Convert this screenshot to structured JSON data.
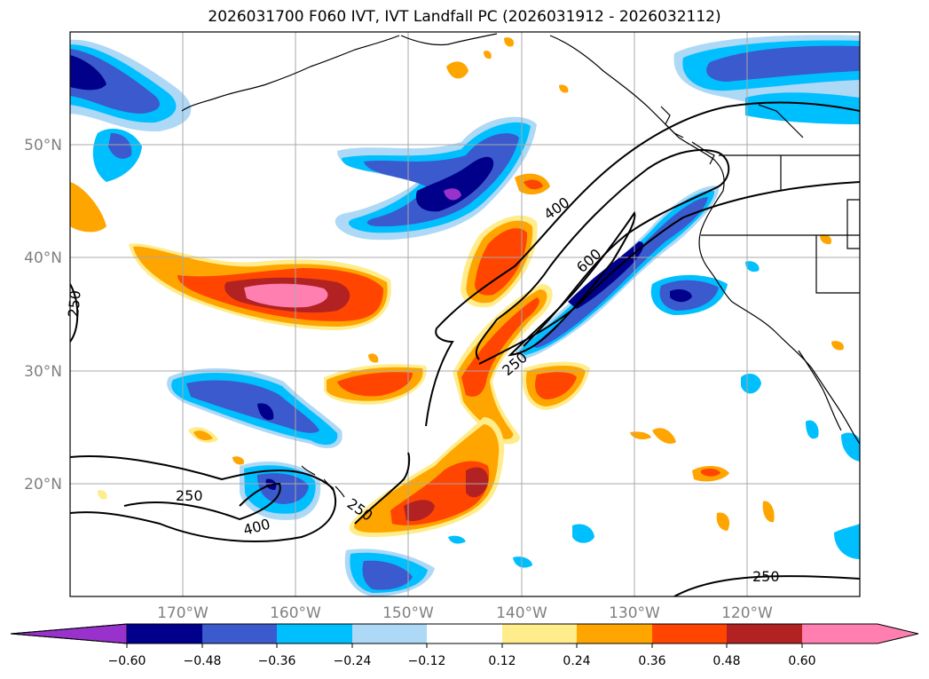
{
  "title": "2026031700 F060 IVT, IVT Landfall PC (2026031912 - 2026032112)",
  "map": {
    "lon_range": [
      -180,
      -110
    ],
    "lat_range": [
      10,
      60
    ],
    "lat_labels": [
      "50°N",
      "40°N",
      "30°N",
      "20°N"
    ],
    "lon_labels": [
      "170°W",
      "160°W",
      "150°W",
      "140°W",
      "130°W",
      "120°W"
    ]
  },
  "contours": {
    "labels": [
      "250",
      "400",
      "600",
      "250",
      "250",
      "400",
      "250",
      "250"
    ],
    "levels": [
      250,
      400,
      600
    ]
  },
  "colorbar": {
    "tick_labels": [
      "−0.60",
      "−0.48",
      "−0.36",
      "−0.24",
      "−0.12",
      "0.12",
      "0.24",
      "0.36",
      "0.48",
      "0.60"
    ],
    "colors": [
      "#9932cc",
      "#00008b",
      "#3a5acd",
      "#00bfff",
      "#add8f6",
      "#ffffff",
      "#ffec8b",
      "#ffa500",
      "#ff4500",
      "#b22222",
      "#ff80b0",
      "#ff80b0"
    ]
  }
}
